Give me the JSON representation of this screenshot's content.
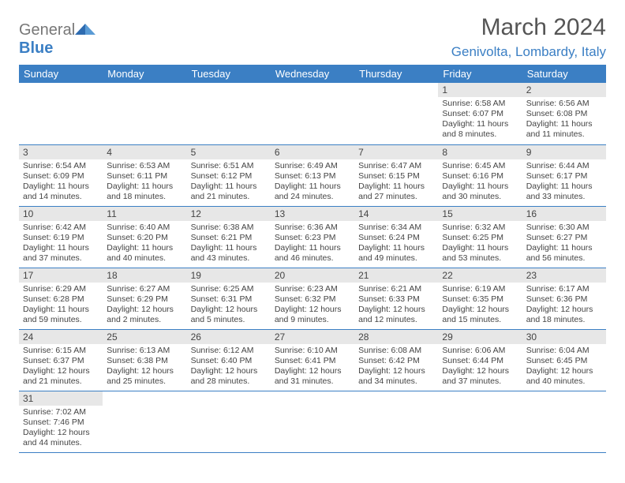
{
  "brand": {
    "part1": "General",
    "part2": "Blue"
  },
  "title": "March 2024",
  "location": "Genivolta, Lombardy, Italy",
  "colors": {
    "header_bg": "#3b7fc4",
    "daynum_bg": "#e7e7e7",
    "row_border": "#3b7fc4"
  },
  "dayHeaders": [
    "Sunday",
    "Monday",
    "Tuesday",
    "Wednesday",
    "Thursday",
    "Friday",
    "Saturday"
  ],
  "weeks": [
    [
      null,
      null,
      null,
      null,
      null,
      {
        "n": "1",
        "sr": "6:58 AM",
        "ss": "6:07 PM",
        "dl": "11 hours and 8 minutes."
      },
      {
        "n": "2",
        "sr": "6:56 AM",
        "ss": "6:08 PM",
        "dl": "11 hours and 11 minutes."
      }
    ],
    [
      {
        "n": "3",
        "sr": "6:54 AM",
        "ss": "6:09 PM",
        "dl": "11 hours and 14 minutes."
      },
      {
        "n": "4",
        "sr": "6:53 AM",
        "ss": "6:11 PM",
        "dl": "11 hours and 18 minutes."
      },
      {
        "n": "5",
        "sr": "6:51 AM",
        "ss": "6:12 PM",
        "dl": "11 hours and 21 minutes."
      },
      {
        "n": "6",
        "sr": "6:49 AM",
        "ss": "6:13 PM",
        "dl": "11 hours and 24 minutes."
      },
      {
        "n": "7",
        "sr": "6:47 AM",
        "ss": "6:15 PM",
        "dl": "11 hours and 27 minutes."
      },
      {
        "n": "8",
        "sr": "6:45 AM",
        "ss": "6:16 PM",
        "dl": "11 hours and 30 minutes."
      },
      {
        "n": "9",
        "sr": "6:44 AM",
        "ss": "6:17 PM",
        "dl": "11 hours and 33 minutes."
      }
    ],
    [
      {
        "n": "10",
        "sr": "6:42 AM",
        "ss": "6:19 PM",
        "dl": "11 hours and 37 minutes."
      },
      {
        "n": "11",
        "sr": "6:40 AM",
        "ss": "6:20 PM",
        "dl": "11 hours and 40 minutes."
      },
      {
        "n": "12",
        "sr": "6:38 AM",
        "ss": "6:21 PM",
        "dl": "11 hours and 43 minutes."
      },
      {
        "n": "13",
        "sr": "6:36 AM",
        "ss": "6:23 PM",
        "dl": "11 hours and 46 minutes."
      },
      {
        "n": "14",
        "sr": "6:34 AM",
        "ss": "6:24 PM",
        "dl": "11 hours and 49 minutes."
      },
      {
        "n": "15",
        "sr": "6:32 AM",
        "ss": "6:25 PM",
        "dl": "11 hours and 53 minutes."
      },
      {
        "n": "16",
        "sr": "6:30 AM",
        "ss": "6:27 PM",
        "dl": "11 hours and 56 minutes."
      }
    ],
    [
      {
        "n": "17",
        "sr": "6:29 AM",
        "ss": "6:28 PM",
        "dl": "11 hours and 59 minutes."
      },
      {
        "n": "18",
        "sr": "6:27 AM",
        "ss": "6:29 PM",
        "dl": "12 hours and 2 minutes."
      },
      {
        "n": "19",
        "sr": "6:25 AM",
        "ss": "6:31 PM",
        "dl": "12 hours and 5 minutes."
      },
      {
        "n": "20",
        "sr": "6:23 AM",
        "ss": "6:32 PM",
        "dl": "12 hours and 9 minutes."
      },
      {
        "n": "21",
        "sr": "6:21 AM",
        "ss": "6:33 PM",
        "dl": "12 hours and 12 minutes."
      },
      {
        "n": "22",
        "sr": "6:19 AM",
        "ss": "6:35 PM",
        "dl": "12 hours and 15 minutes."
      },
      {
        "n": "23",
        "sr": "6:17 AM",
        "ss": "6:36 PM",
        "dl": "12 hours and 18 minutes."
      }
    ],
    [
      {
        "n": "24",
        "sr": "6:15 AM",
        "ss": "6:37 PM",
        "dl": "12 hours and 21 minutes."
      },
      {
        "n": "25",
        "sr": "6:13 AM",
        "ss": "6:38 PM",
        "dl": "12 hours and 25 minutes."
      },
      {
        "n": "26",
        "sr": "6:12 AM",
        "ss": "6:40 PM",
        "dl": "12 hours and 28 minutes."
      },
      {
        "n": "27",
        "sr": "6:10 AM",
        "ss": "6:41 PM",
        "dl": "12 hours and 31 minutes."
      },
      {
        "n": "28",
        "sr": "6:08 AM",
        "ss": "6:42 PM",
        "dl": "12 hours and 34 minutes."
      },
      {
        "n": "29",
        "sr": "6:06 AM",
        "ss": "6:44 PM",
        "dl": "12 hours and 37 minutes."
      },
      {
        "n": "30",
        "sr": "6:04 AM",
        "ss": "6:45 PM",
        "dl": "12 hours and 40 minutes."
      }
    ],
    [
      {
        "n": "31",
        "sr": "7:02 AM",
        "ss": "7:46 PM",
        "dl": "12 hours and 44 minutes."
      },
      null,
      null,
      null,
      null,
      null,
      null
    ]
  ],
  "labels": {
    "sunrise": "Sunrise:",
    "sunset": "Sunset:",
    "daylight": "Daylight:"
  }
}
